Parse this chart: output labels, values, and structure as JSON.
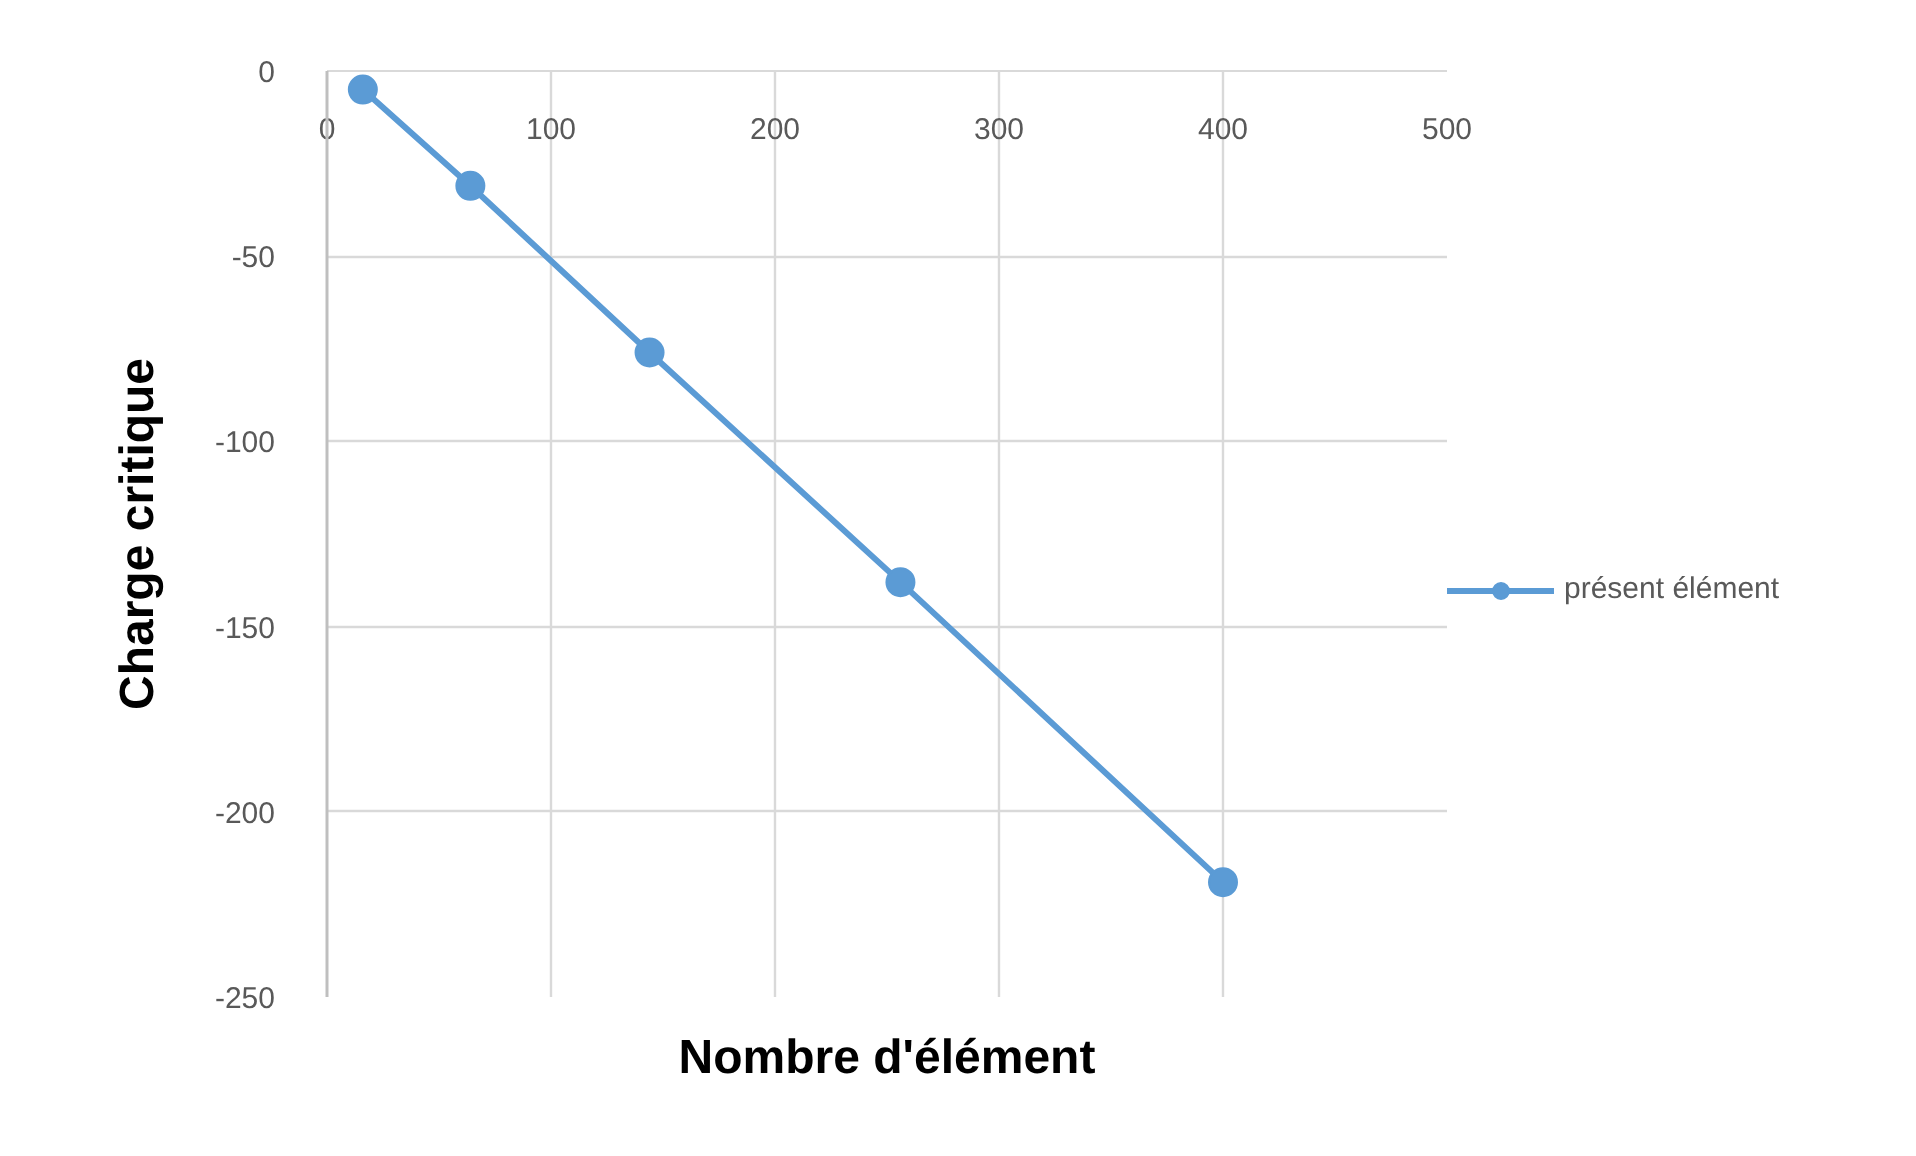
{
  "chart_data": {
    "type": "line",
    "x": [
      16,
      64,
      144,
      256,
      400
    ],
    "series": [
      {
        "name": "présent élément",
        "color": "#5b9bd5",
        "values": [
          -5,
          -31,
          -76,
          -138,
          -219
        ]
      }
    ],
    "xlabel": "Nombre d'élément",
    "ylabel": "Charge critique",
    "xlim": [
      0,
      500
    ],
    "ylim": [
      -250,
      0
    ],
    "xticks": [
      0,
      100,
      200,
      300,
      400,
      500
    ],
    "yticks": [
      -250,
      -200,
      -150,
      -100,
      -50,
      0
    ],
    "grid": true,
    "legend": "right",
    "marker": "circle",
    "line_style": "solid"
  }
}
